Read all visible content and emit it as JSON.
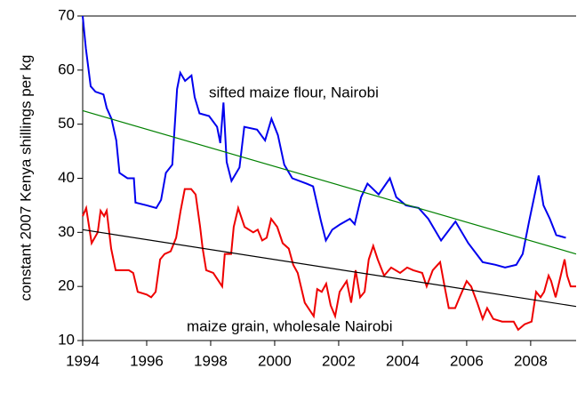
{
  "chart_data": {
    "type": "line",
    "y_label": "constant 2007 Kenya shillings per kg",
    "xlim": [
      1994,
      2009.42
    ],
    "xticks": [
      1994,
      1996,
      1998,
      2000,
      2002,
      2004,
      2006,
      2008
    ],
    "ylim": [
      10,
      70
    ],
    "yticks": [
      10,
      20,
      30,
      40,
      50,
      60,
      70
    ],
    "series": [
      {
        "name": "sifted maize flour, Nairobi",
        "color": "#0000ee",
        "x": [
          1994.0,
          1994.1,
          1994.25,
          1994.4,
          1994.65,
          1994.75,
          1994.9,
          1995.05,
          1995.15,
          1995.4,
          1995.6,
          1995.65,
          1996.0,
          1996.3,
          1996.45,
          1996.6,
          1996.8,
          1996.95,
          1997.05,
          1997.2,
          1997.4,
          1997.5,
          1997.65,
          1997.95,
          1998.2,
          1998.3,
          1998.4,
          1998.5,
          1998.65,
          1998.9,
          1999.05,
          1999.45,
          1999.7,
          1999.9,
          2000.1,
          2000.3,
          2000.55,
          2001.0,
          2001.2,
          2001.45,
          2001.6,
          2001.8,
          2002.05,
          2002.35,
          2002.5,
          2002.7,
          2002.9,
          2003.25,
          2003.6,
          2003.8,
          2004.1,
          2004.5,
          2004.8,
          2005.2,
          2005.65,
          2006.05,
          2006.5,
          2006.9,
          2007.2,
          2007.55,
          2007.75,
          2007.95,
          2008.25,
          2008.4,
          2008.6,
          2008.8,
          2009.1
        ],
        "values": [
          70,
          64,
          57,
          56,
          55.5,
          53,
          51,
          47,
          41,
          40,
          40,
          35.5,
          35,
          34.5,
          36,
          41,
          42.5,
          56.5,
          59.5,
          58,
          59,
          55,
          52,
          51.5,
          49.5,
          46.5,
          54,
          43,
          39.5,
          42,
          49.5,
          49,
          47,
          51,
          48,
          42.5,
          40,
          39,
          38.5,
          32,
          28.5,
          30.5,
          31.5,
          32.5,
          31.5,
          36.5,
          39,
          37,
          40,
          36.5,
          35,
          34.5,
          32.5,
          28.5,
          32,
          28,
          24.5,
          24,
          23.5,
          24,
          26,
          32,
          40.5,
          35,
          32.5,
          29.5,
          29
        ]
      },
      {
        "name": "maize grain, wholesale Nairobi",
        "color": "#ee0000",
        "x": [
          1994.0,
          1994.11,
          1994.28,
          1994.47,
          1994.56,
          1994.67,
          1994.75,
          1994.89,
          1995.03,
          1995.31,
          1995.44,
          1995.58,
          1995.72,
          1996.0,
          1996.14,
          1996.28,
          1996.42,
          1996.56,
          1996.75,
          1996.92,
          1997.06,
          1997.19,
          1997.39,
          1997.53,
          1997.67,
          1997.75,
          1997.86,
          1998.08,
          1998.36,
          1998.44,
          1998.64,
          1998.72,
          1998.86,
          1999.06,
          1999.33,
          1999.47,
          1999.61,
          1999.75,
          1999.89,
          2000.08,
          2000.25,
          2000.44,
          2000.58,
          2000.72,
          2000.94,
          2001.22,
          2001.33,
          2001.47,
          2001.61,
          2001.75,
          2001.89,
          2002.03,
          2002.25,
          2002.39,
          2002.53,
          2002.67,
          2002.81,
          2002.94,
          2003.08,
          2003.22,
          2003.42,
          2003.64,
          2003.92,
          2004.14,
          2004.33,
          2004.61,
          2004.75,
          2004.94,
          2005.17,
          2005.31,
          2005.44,
          2005.64,
          2005.78,
          2006.0,
          2006.14,
          2006.33,
          2006.5,
          2006.64,
          2006.83,
          2007.11,
          2007.25,
          2007.47,
          2007.61,
          2007.81,
          2008.03,
          2008.17,
          2008.31,
          2008.42,
          2008.56,
          2008.64,
          2008.78,
          2008.92,
          2009.06,
          2009.14,
          2009.25,
          2009.42
        ],
        "values": [
          33,
          34.5,
          28,
          30,
          34,
          33,
          34,
          27,
          23,
          23,
          23,
          22.5,
          19,
          18.5,
          18,
          19,
          25,
          26,
          26.5,
          29,
          34,
          38,
          38,
          37,
          31,
          27,
          23,
          22.5,
          20,
          26,
          26,
          31,
          34.5,
          31,
          30,
          30.5,
          28.5,
          29,
          32.5,
          31,
          28,
          27,
          24,
          22.5,
          17,
          14.5,
          19.5,
          19,
          20.5,
          16.5,
          14.5,
          19,
          21,
          17,
          23,
          18,
          19,
          25,
          27.5,
          25,
          22,
          23.5,
          22.5,
          23.5,
          23,
          22.5,
          20,
          23,
          24.5,
          20,
          16,
          16,
          18,
          21,
          20,
          17,
          14,
          16,
          14,
          13.5,
          13.5,
          13.5,
          12,
          13,
          13.5,
          19,
          18,
          19,
          22,
          21,
          18,
          21.5,
          25,
          22,
          20,
          20
        ]
      },
      {
        "color": "#008000",
        "x": [
          1994,
          2009.42
        ],
        "values": [
          52.5,
          26
        ]
      },
      {
        "color": "#000000",
        "x": [
          1994,
          2009.42
        ],
        "values": [
          30.5,
          16.3
        ]
      }
    ]
  }
}
